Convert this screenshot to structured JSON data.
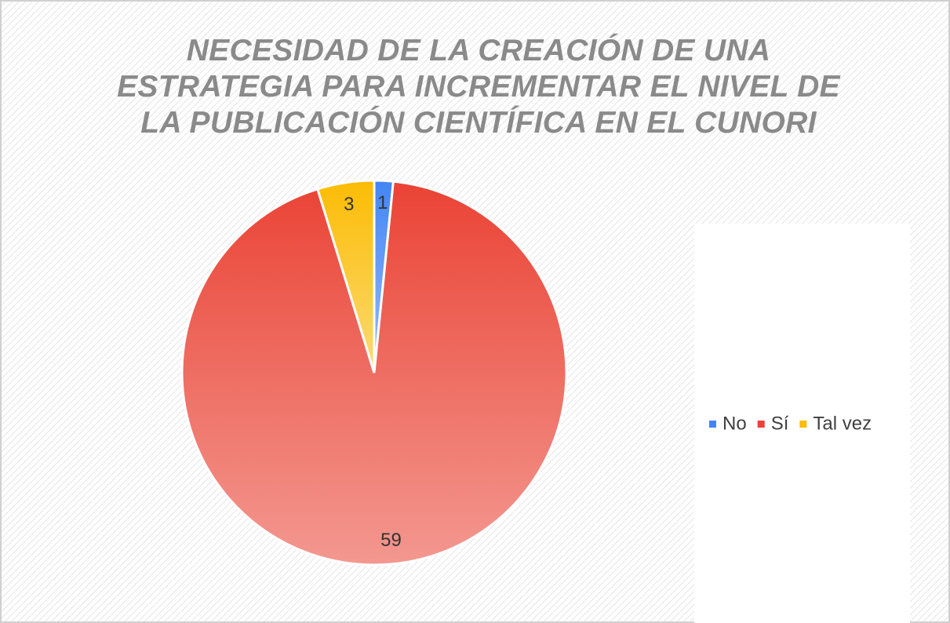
{
  "chart_data": {
    "type": "pie",
    "title": "NECESIDAD DE LA CREACIÓN DE UNA ESTRATEGIA PARA INCREMENTAR EL NIVEL DE LA PUBLICACIÓN CIENTÍFICA EN EL CUNORI",
    "categories": [
      "No",
      "Sí",
      "Tal vez"
    ],
    "values": [
      1,
      59,
      3
    ],
    "colors": [
      "#4285f4",
      "#ea4335",
      "#fbbc04"
    ],
    "legend": "right"
  }
}
